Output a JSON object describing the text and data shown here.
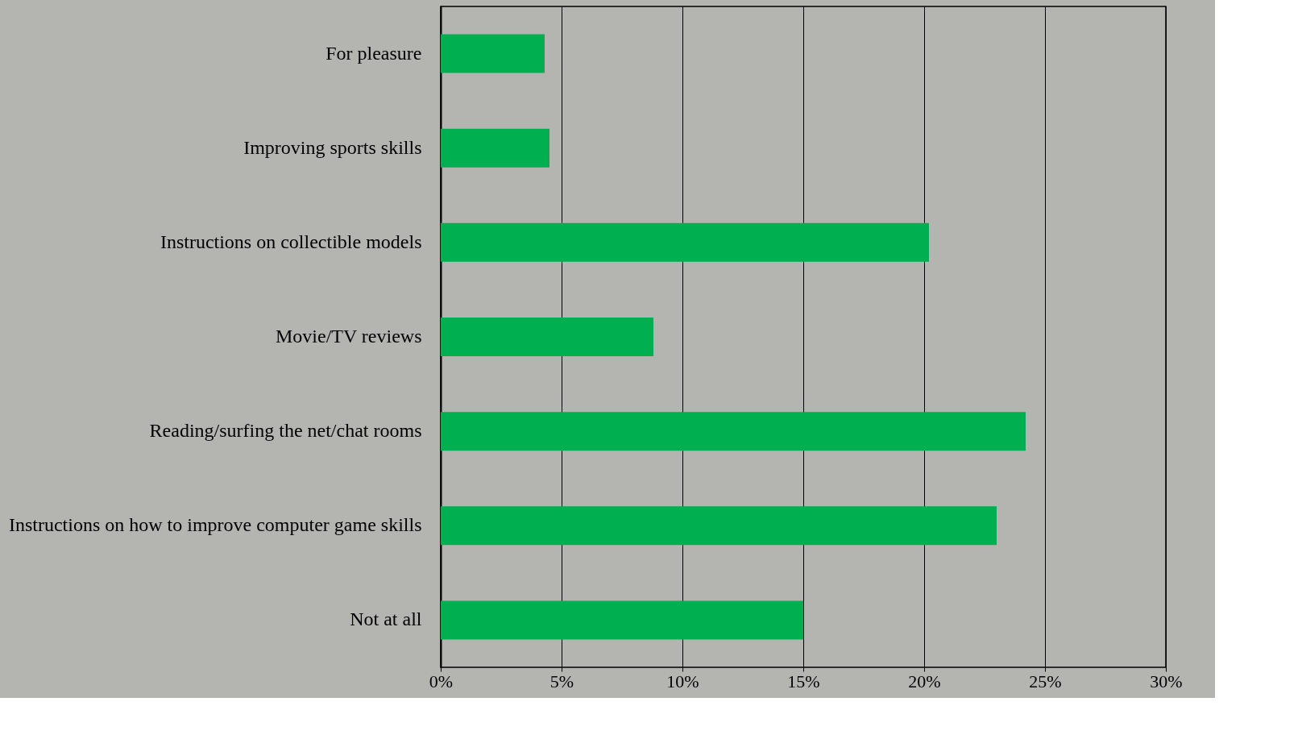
{
  "chart_data": {
    "type": "bar",
    "orientation": "horizontal",
    "categories": [
      "For pleasure",
      "Improving sports skills",
      "Instructions on collectible models",
      "Movie/TV reviews",
      "Reading/surfing the net/chat rooms",
      "Instructions on how to improve computer game skills",
      "Not at all"
    ],
    "values": [
      4.3,
      4.5,
      20.2,
      8.8,
      24.2,
      23.0,
      15.0
    ],
    "color": "#00b050",
    "xlim": [
      0,
      30
    ],
    "xticks": [
      {
        "value": 0,
        "label": "0%"
      },
      {
        "value": 5,
        "label": "5%"
      },
      {
        "value": 10,
        "label": "10%"
      },
      {
        "value": 15,
        "label": "15%"
      },
      {
        "value": 20,
        "label": "20%"
      },
      {
        "value": 25,
        "label": "25%"
      },
      {
        "value": 30,
        "label": "30%"
      }
    ],
    "grid": "x"
  }
}
